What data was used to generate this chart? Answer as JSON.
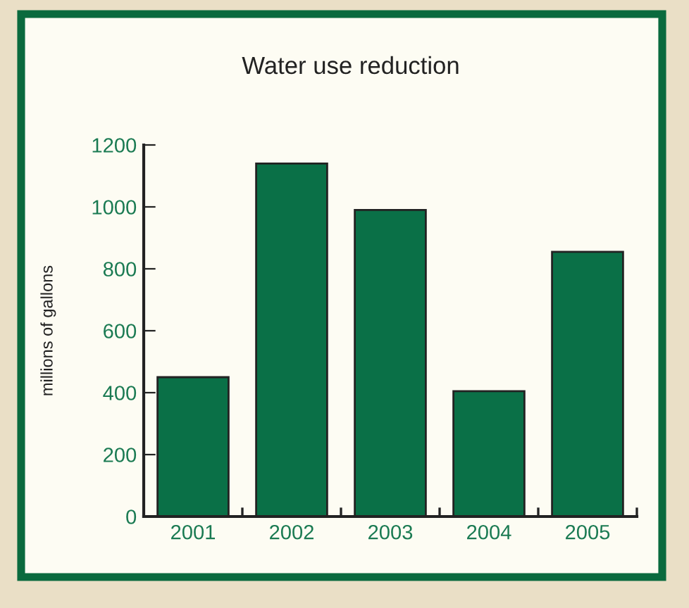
{
  "chart_data": {
    "type": "bar",
    "title": "Water use reduction",
    "ylabel": "millions of gallons",
    "categories": [
      "2001",
      "2002",
      "2003",
      "2004",
      "2005"
    ],
    "values": [
      450,
      1140,
      990,
      405,
      855
    ],
    "color": "#0a7047",
    "ylim": [
      0,
      1200
    ],
    "yticks": [
      0,
      200,
      400,
      600,
      800,
      1000,
      1200
    ]
  }
}
